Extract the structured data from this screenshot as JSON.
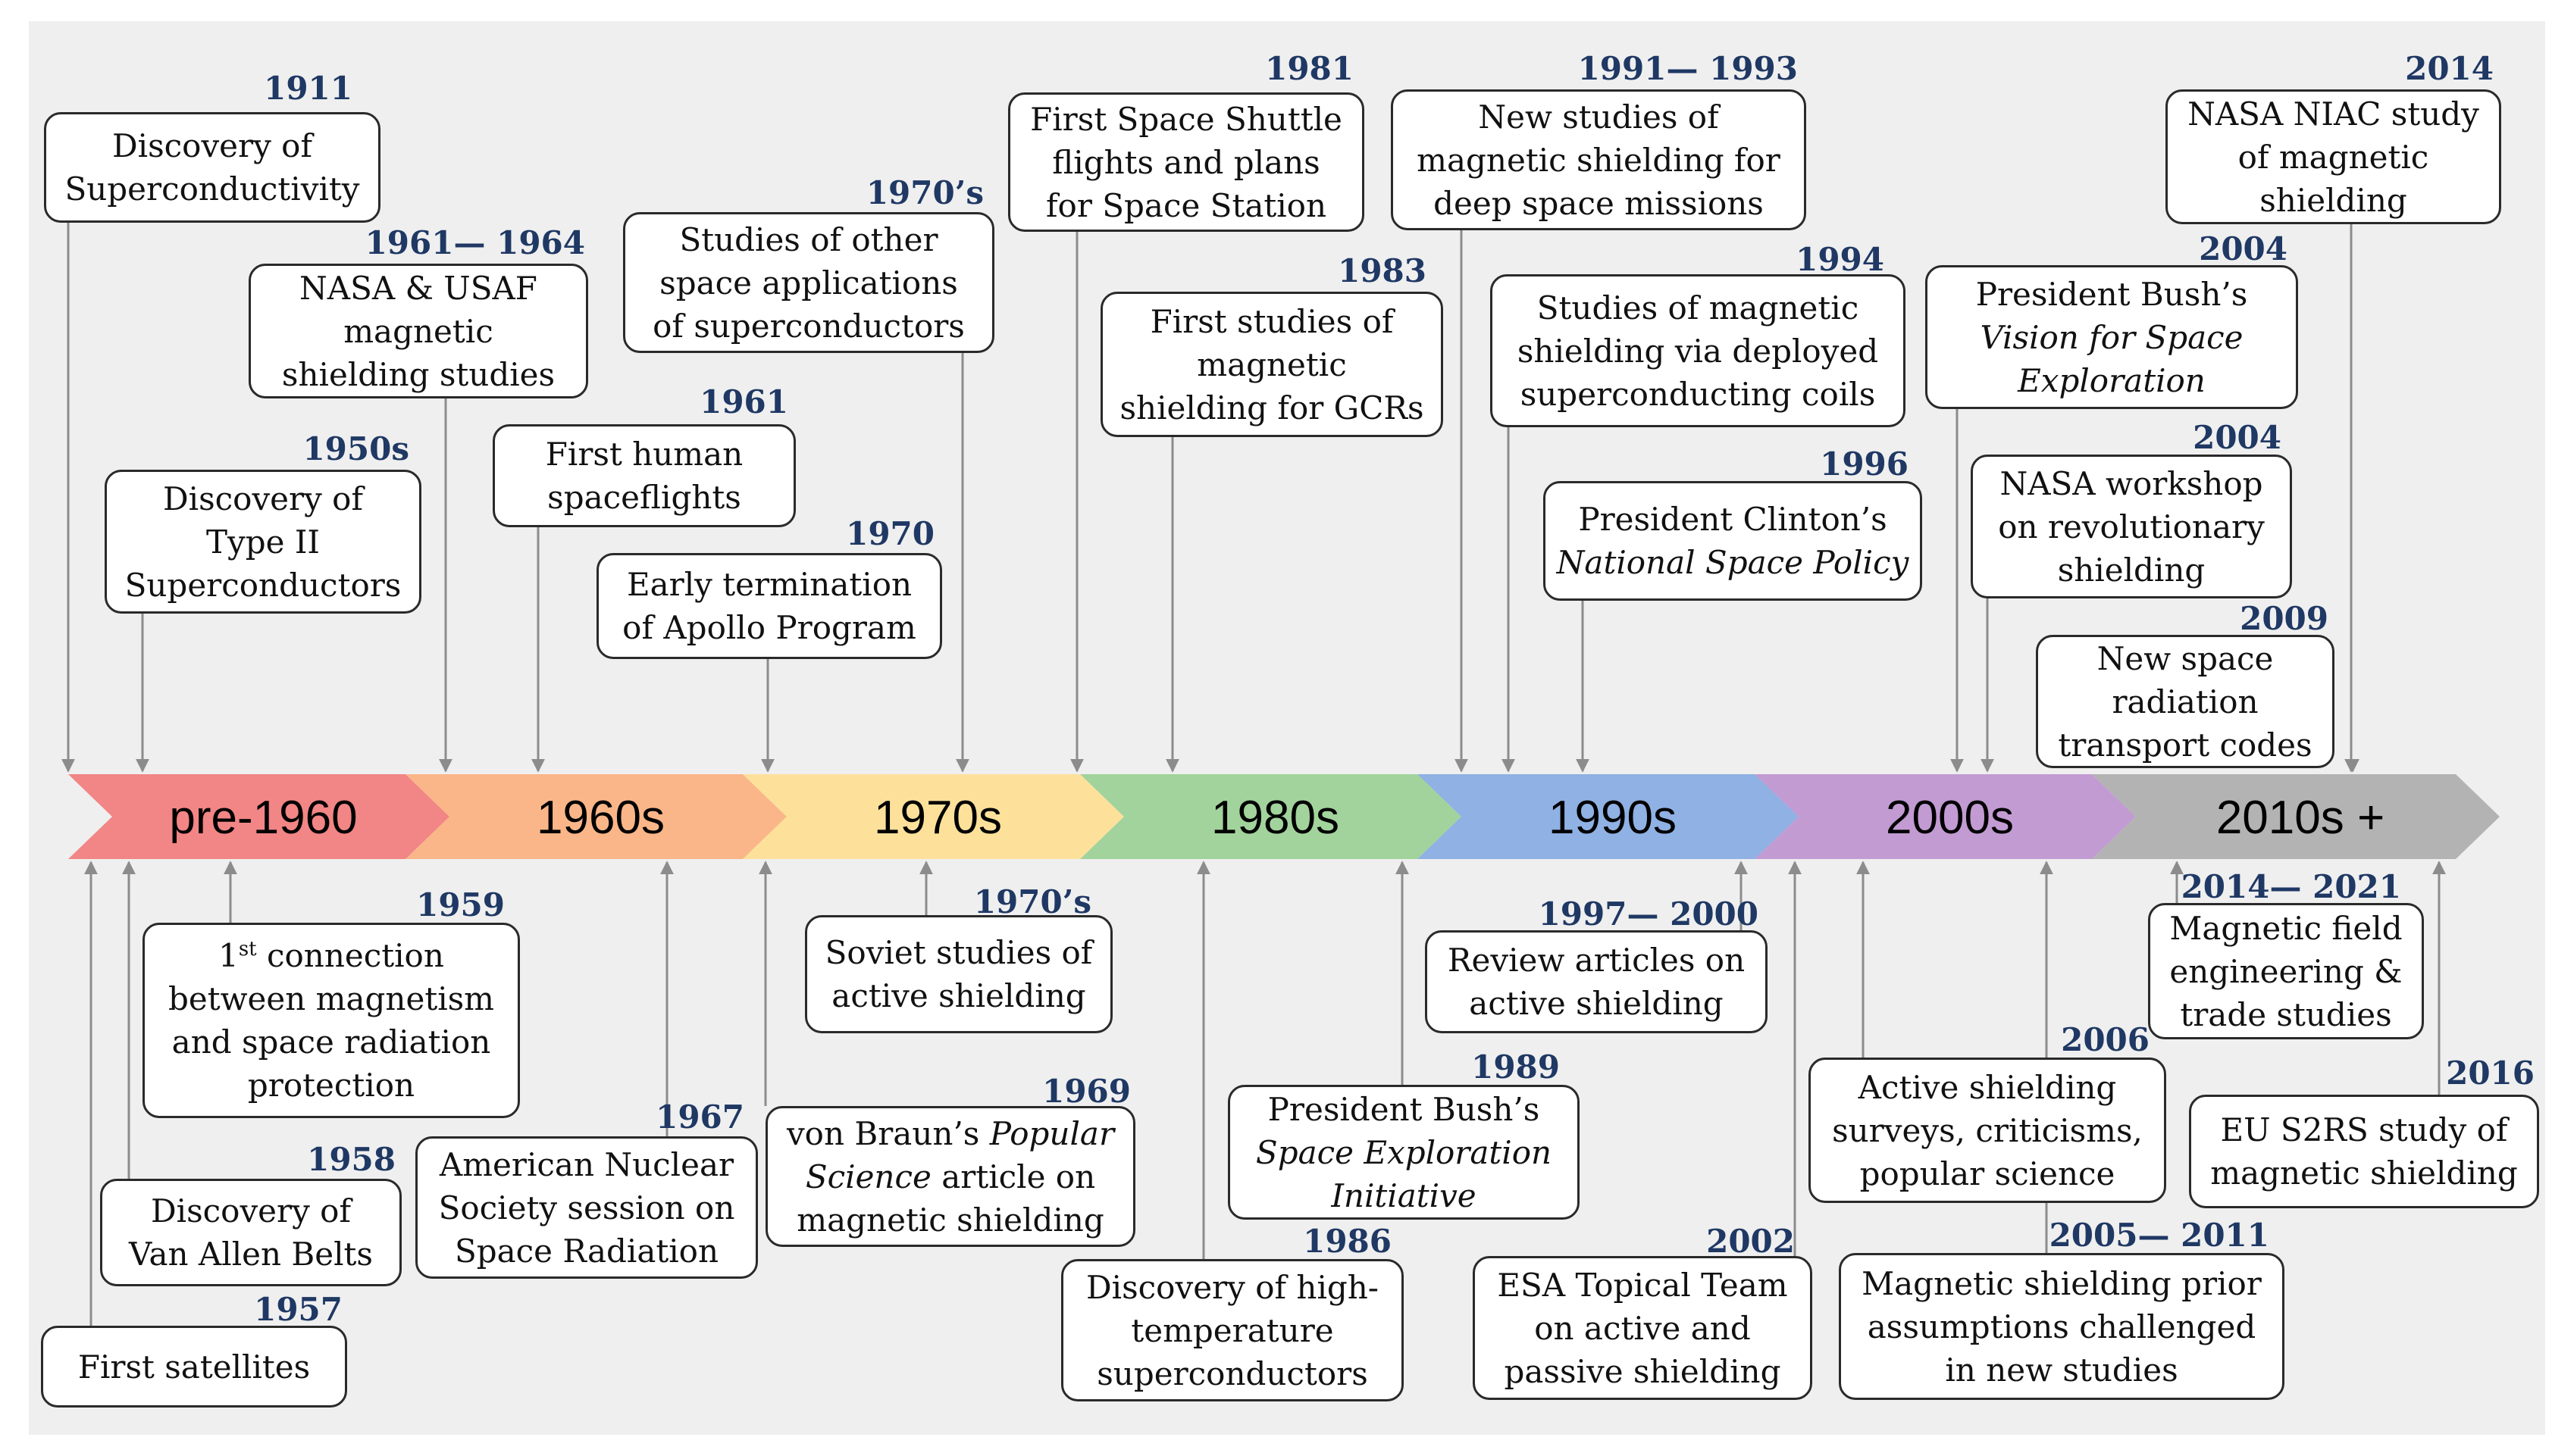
{
  "eras": [
    {
      "label": "pre-1960",
      "color": "#f28585"
    },
    {
      "label": "1960s",
      "color": "#fab688"
    },
    {
      "label": "1970s",
      "color": "#fde19b"
    },
    {
      "label": "1980s",
      "color": "#a2d39c"
    },
    {
      "label": "1990s",
      "color": "#8fb1e3"
    },
    {
      "label": "2000s",
      "color": "#c29bd3"
    },
    {
      "label": "2010s +",
      "color": "#b3b3b3"
    }
  ],
  "events_above": [
    {
      "year": "1911",
      "lines": [
        "Discovery of",
        "Superconductivity"
      ]
    },
    {
      "year": "1961— 1964",
      "lines": [
        "NASA & USAF",
        "magnetic",
        "shielding studies"
      ]
    },
    {
      "year": "1950s",
      "lines": [
        "Discovery of",
        "Type II",
        "Superconductors"
      ]
    },
    {
      "year": "1961",
      "lines": [
        "First human",
        "spaceflights"
      ]
    },
    {
      "year": "1970’s",
      "lines": [
        "Studies of other",
        "space applications",
        "of superconductors"
      ]
    },
    {
      "year": "1970",
      "lines": [
        "Early termination",
        "of Apollo Program"
      ]
    },
    {
      "year": "1981",
      "lines": [
        "First Space Shuttle",
        "flights and plans",
        "for Space Station"
      ]
    },
    {
      "year": "1983",
      "lines": [
        "First studies of",
        "magnetic",
        "shielding for GCRs"
      ]
    },
    {
      "year": "1991— 1993",
      "lines": [
        "New studies of",
        "magnetic shielding for",
        "deep space missions"
      ]
    },
    {
      "year": "1994",
      "lines": [
        "Studies of magnetic",
        "shielding via deployed",
        "superconducting coils"
      ]
    },
    {
      "year": "1996",
      "lines": [
        "President Clinton’s",
        "National Space Policy"
      ]
    },
    {
      "year": "2014",
      "lines": [
        "NASA NIAC study",
        "of magnetic",
        "shielding"
      ]
    },
    {
      "year": "2004",
      "lines": [
        "President Bush’s",
        "Vision for Space",
        "Exploration"
      ]
    },
    {
      "year": "2004",
      "lines": [
        "NASA workshop",
        "on revolutionary",
        "shielding"
      ]
    },
    {
      "year": "2009",
      "lines": [
        "New space",
        "radiation",
        "transport codes"
      ]
    }
  ],
  "events_below": [
    {
      "year": "1959",
      "lines": [
        "1st connection",
        "between magnetism",
        "and space radiation",
        "protection"
      ],
      "sup": "st"
    },
    {
      "year": "1958",
      "lines": [
        "Discovery of",
        "Van Allen Belts"
      ]
    },
    {
      "year": "1957",
      "lines": [
        "First satellites"
      ]
    },
    {
      "year": "1967",
      "lines": [
        "American Nuclear",
        "Society session on",
        "Space Radiation"
      ]
    },
    {
      "year": "1970’s",
      "lines": [
        "Soviet studies of",
        "active shielding"
      ]
    },
    {
      "year": "1969",
      "lines": [
        "von Braun’s Popular",
        "Science article on",
        "magnetic shielding"
      ]
    },
    {
      "year": "1986",
      "lines": [
        "Discovery of high-",
        "temperature",
        "superconductors"
      ]
    },
    {
      "year": "1989",
      "lines": [
        "President Bush’s",
        "Space Exploration",
        "Initiative"
      ]
    },
    {
      "year": "1997— 2000",
      "lines": [
        "Review articles on",
        "active shielding"
      ]
    },
    {
      "year": "2002",
      "lines": [
        "ESA Topical Team",
        "on active and",
        "passive shielding"
      ]
    },
    {
      "year": "2006",
      "lines": [
        "Active shielding",
        "surveys, criticisms,",
        "popular science"
      ]
    },
    {
      "year": "2005— 2011",
      "lines": [
        "Magnetic shielding prior",
        "assumptions challenged",
        "in new studies"
      ]
    },
    {
      "year": "2014— 2021",
      "lines": [
        "Magnetic field",
        "engineering &",
        "trade studies"
      ]
    },
    {
      "year": "2016",
      "lines": [
        "EU S2RS study of",
        "magnetic shielding"
      ]
    }
  ]
}
